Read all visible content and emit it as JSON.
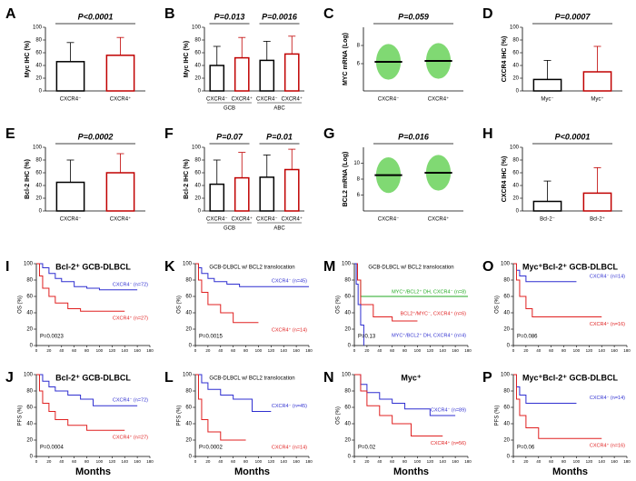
{
  "chart_data": [
    {
      "label": "A",
      "type": "bar",
      "ylabel": "Myc IHC (%)",
      "ylim": [
        0,
        100
      ],
      "yticks": [
        0,
        20,
        40,
        60,
        80,
        100
      ],
      "categories": [
        "CXCR4⁻",
        "CXCR4⁺"
      ],
      "values": [
        46,
        56
      ],
      "errors": [
        30,
        28
      ],
      "colors": [
        "#000000",
        "#c00000"
      ],
      "annotations": [
        "P<0.0001"
      ]
    },
    {
      "label": "B",
      "type": "bar",
      "ylabel": "Myc IHC (%)",
      "ylim": [
        0,
        100
      ],
      "yticks": [
        0,
        20,
        40,
        60,
        80,
        100
      ],
      "categories": [
        "CXCR4⁻",
        "CXCR4⁺",
        "CXCR4⁻",
        "CXCR4⁺"
      ],
      "groups": [
        "GCB",
        "ABC"
      ],
      "values": [
        40,
        52,
        48,
        58
      ],
      "errors": [
        30,
        32,
        30,
        28
      ],
      "colors": [
        "#000000",
        "#c00000",
        "#000000",
        "#c00000"
      ],
      "annotations": [
        "P=0.013",
        "P=0.0016"
      ]
    },
    {
      "label": "C",
      "type": "dot",
      "ylabel": "MYC mRNA (Log)",
      "ylim": [
        3,
        10
      ],
      "yticks": [
        6,
        8
      ],
      "categories": [
        "CXCR4⁻",
        "CXCR4⁺"
      ],
      "values": [
        6.2,
        6.3
      ],
      "colors": [
        "#000000",
        "#000000"
      ],
      "annotations": [
        "P=0.059"
      ]
    },
    {
      "label": "D",
      "type": "bar",
      "ylabel": "CXCR4 IHC (%)",
      "ylim": [
        0,
        100
      ],
      "yticks": [
        0,
        20,
        40,
        60,
        80,
        100
      ],
      "categories": [
        "Myc⁻",
        "Myc⁺"
      ],
      "values": [
        18,
        30
      ],
      "errors": [
        30,
        40
      ],
      "colors": [
        "#000000",
        "#c00000"
      ],
      "annotations": [
        "P=0.0007"
      ]
    },
    {
      "label": "E",
      "type": "bar",
      "ylabel": "Bcl-2 IHC (%)",
      "ylim": [
        0,
        100
      ],
      "yticks": [
        0,
        20,
        40,
        60,
        80,
        100
      ],
      "categories": [
        "CXCR4⁻",
        "CXCR4⁺"
      ],
      "values": [
        45,
        60
      ],
      "errors": [
        35,
        30
      ],
      "colors": [
        "#000000",
        "#c00000"
      ],
      "annotations": [
        "P=0.0002"
      ]
    },
    {
      "label": "F",
      "type": "bar",
      "ylabel": "Bcl-2 IHC (%)",
      "ylim": [
        0,
        100
      ],
      "yticks": [
        0,
        20,
        40,
        60,
        80,
        100
      ],
      "categories": [
        "CXCR4⁻",
        "CXCR4⁺",
        "CXCR4⁻",
        "CXCR4⁺"
      ],
      "groups": [
        "GCB",
        "ABC"
      ],
      "values": [
        42,
        52,
        53,
        65
      ],
      "errors": [
        38,
        40,
        35,
        32
      ],
      "colors": [
        "#000000",
        "#c00000",
        "#000000",
        "#c00000"
      ],
      "annotations": [
        "P=0.07",
        "P=0.01"
      ]
    },
    {
      "label": "G",
      "type": "dot",
      "ylabel": "BCL2 mRNA (Log)",
      "ylim": [
        4,
        12
      ],
      "yticks": [
        6,
        8,
        10
      ],
      "categories": [
        "CXCR4⁻",
        "CXCR4⁺"
      ],
      "values": [
        8.5,
        8.8
      ],
      "colors": [
        "#000000",
        "#000000"
      ],
      "annotations": [
        "P=0.016"
      ]
    },
    {
      "label": "H",
      "type": "bar",
      "ylabel": "CXCR4 IHC (%)",
      "ylim": [
        0,
        100
      ],
      "yticks": [
        0,
        20,
        40,
        60,
        80,
        100
      ],
      "categories": [
        "Bcl-2⁻",
        "Bcl-2⁺"
      ],
      "values": [
        15,
        28
      ],
      "errors": [
        32,
        40
      ],
      "colors": [
        "#000000",
        "#c00000"
      ],
      "annotations": [
        "P<0.0001"
      ]
    },
    {
      "label": "I",
      "type": "km",
      "title": "Bcl-2⁺ GCB-DLBCL",
      "ylabel": "OS (%)",
      "xlim": [
        0,
        180
      ],
      "xticks": [
        0,
        20,
        40,
        60,
        80,
        100,
        120,
        140,
        160,
        180
      ],
      "ylim": [
        0,
        100
      ],
      "yticks": [
        0,
        20,
        40,
        60,
        80,
        100
      ],
      "annotations": [
        "P=0.0023"
      ],
      "series": [
        {
          "name": "CXCR4⁻ (n=72)",
          "color": "#2f2fd0",
          "x": [
            0,
            10,
            20,
            30,
            40,
            60,
            80,
            100,
            160
          ],
          "y": [
            100,
            95,
            88,
            82,
            78,
            72,
            70,
            68,
            68
          ]
        },
        {
          "name": "CXCR4⁺ (n=27)",
          "color": "#e02020",
          "x": [
            0,
            5,
            10,
            20,
            30,
            50,
            70,
            140
          ],
          "y": [
            100,
            85,
            70,
            60,
            52,
            45,
            42,
            42
          ]
        }
      ]
    },
    {
      "label": "K",
      "type": "km",
      "title": "GCB-DLBCL w/ BCL2 translocation",
      "ylabel": "OS (%)",
      "xlim": [
        0,
        180
      ],
      "xticks": [
        0,
        20,
        40,
        60,
        80,
        100,
        120,
        140,
        160,
        180
      ],
      "ylim": [
        0,
        100
      ],
      "yticks": [
        0,
        20,
        40,
        60,
        80,
        100
      ],
      "annotations": [
        "P=0.0015"
      ],
      "series": [
        {
          "name": "CXCR4⁻ (n=45)",
          "color": "#2f2fd0",
          "x": [
            0,
            5,
            10,
            20,
            30,
            50,
            70,
            100,
            180
          ],
          "y": [
            100,
            95,
            88,
            82,
            78,
            75,
            72,
            72,
            72
          ]
        },
        {
          "name": "CXCR4⁺ (n=14)",
          "color": "#e02020",
          "x": [
            0,
            5,
            10,
            20,
            40,
            60,
            100
          ],
          "y": [
            100,
            80,
            65,
            50,
            40,
            28,
            28
          ]
        }
      ]
    },
    {
      "label": "M",
      "type": "km",
      "title": "GCB-DLBCL w/ BCL2 translocation",
      "ylabel": "OS (%)",
      "xlim": [
        0,
        180
      ],
      "xticks": [
        0,
        20,
        40,
        60,
        80,
        100,
        120,
        140,
        160,
        180
      ],
      "ylim": [
        0,
        100
      ],
      "yticks": [
        0,
        20,
        40,
        60,
        80,
        100
      ],
      "annotations": [
        "P=0.13"
      ],
      "series": [
        {
          "name": "MYC⁺/BCL2⁺ DH, CXCR4⁻ (n=8)",
          "color": "#22aa22",
          "x": [
            0,
            5,
            10,
            180
          ],
          "y": [
            100,
            80,
            60,
            60
          ]
        },
        {
          "name": "BCL2⁺/MYC⁻, CXCR4⁺ (n=6)",
          "color": "#e02020",
          "x": [
            0,
            5,
            10,
            30,
            60,
            100
          ],
          "y": [
            100,
            80,
            50,
            35,
            30,
            30
          ]
        },
        {
          "name": "MYC⁺/BCL2⁺ DH, CXCR4⁺ (n=4)",
          "color": "#2f2fd0",
          "x": [
            0,
            3,
            6,
            10,
            15
          ],
          "y": [
            100,
            75,
            50,
            25,
            0
          ]
        }
      ]
    },
    {
      "label": "O",
      "type": "km",
      "title": "Myc⁺Bcl-2⁺ GCB-DLBCL",
      "ylabel": "OS (%)",
      "xlim": [
        0,
        180
      ],
      "xticks": [
        0,
        20,
        40,
        60,
        80,
        100,
        120,
        140,
        160,
        180
      ],
      "ylim": [
        0,
        100
      ],
      "yticks": [
        0,
        20,
        40,
        60,
        80,
        100
      ],
      "annotations": [
        "P=0.086"
      ],
      "series": [
        {
          "name": "CXCR4⁻ (n=14)",
          "color": "#2f2fd0",
          "x": [
            0,
            5,
            10,
            20,
            100
          ],
          "y": [
            100,
            92,
            85,
            78,
            78
          ]
        },
        {
          "name": "CXCR4⁺ (n=16)",
          "color": "#e02020",
          "x": [
            0,
            5,
            10,
            20,
            30,
            140
          ],
          "y": [
            100,
            80,
            60,
            45,
            35,
            35
          ]
        }
      ]
    },
    {
      "label": "J",
      "type": "km",
      "title": "Bcl-2⁺ GCB-DLBCL",
      "ylabel": "PFS (%)",
      "xlabel": "Months",
      "xlim": [
        0,
        180
      ],
      "xticks": [
        0,
        20,
        40,
        60,
        80,
        100,
        120,
        140,
        160,
        180
      ],
      "ylim": [
        0,
        100
      ],
      "yticks": [
        0,
        20,
        40,
        60,
        80,
        100
      ],
      "annotations": [
        "P=0.0004"
      ],
      "series": [
        {
          "name": "CXCR4⁻ (n=72)",
          "color": "#2f2fd0",
          "x": [
            0,
            10,
            20,
            30,
            50,
            70,
            90,
            160
          ],
          "y": [
            100,
            92,
            85,
            80,
            75,
            70,
            62,
            62
          ]
        },
        {
          "name": "CXCR4⁺ (n=27)",
          "color": "#e02020",
          "x": [
            0,
            5,
            10,
            20,
            30,
            50,
            80,
            140
          ],
          "y": [
            100,
            80,
            65,
            55,
            45,
            38,
            32,
            32
          ]
        }
      ]
    },
    {
      "label": "L",
      "type": "km",
      "title": "GCB-DLBCL w/ BCL2 translocation",
      "ylabel": "PFS (%)",
      "xlabel": "Months",
      "xlim": [
        0,
        180
      ],
      "xticks": [
        0,
        20,
        40,
        60,
        80,
        100,
        120,
        140,
        160,
        180
      ],
      "ylim": [
        0,
        100
      ],
      "yticks": [
        0,
        20,
        40,
        60,
        80,
        100
      ],
      "annotations": [
        "P=0.0002"
      ],
      "series": [
        {
          "name": "CXCR4⁻ (n=45)",
          "color": "#2f2fd0",
          "x": [
            0,
            10,
            20,
            40,
            60,
            90,
            120
          ],
          "y": [
            100,
            90,
            82,
            75,
            70,
            55,
            55
          ]
        },
        {
          "name": "CXCR4⁺ (n=14)",
          "color": "#e02020",
          "x": [
            0,
            5,
            10,
            20,
            40,
            80
          ],
          "y": [
            100,
            70,
            45,
            30,
            20,
            20
          ]
        }
      ]
    },
    {
      "label": "N",
      "type": "km",
      "title": "Myc⁺",
      "ylabel": "OS (%)",
      "xlabel": "Months",
      "xlim": [
        0,
        180
      ],
      "xticks": [
        0,
        20,
        40,
        60,
        80,
        100,
        120,
        140,
        160,
        180
      ],
      "ylim": [
        0,
        100
      ],
      "yticks": [
        0,
        20,
        40,
        60,
        80,
        100
      ],
      "annotations": [
        "P=0.02"
      ],
      "series": [
        {
          "name": "CXCR4⁻ (n=89)",
          "color": "#2f2fd0",
          "x": [
            0,
            10,
            20,
            40,
            60,
            80,
            120,
            160
          ],
          "y": [
            100,
            88,
            78,
            70,
            65,
            58,
            50,
            50
          ]
        },
        {
          "name": "CXCR4⁺ (n=56)",
          "color": "#e02020",
          "x": [
            0,
            10,
            20,
            40,
            60,
            90,
            140
          ],
          "y": [
            100,
            80,
            62,
            50,
            40,
            25,
            25
          ]
        }
      ]
    },
    {
      "label": "P",
      "type": "km",
      "title": "Myc⁺Bcl-2⁺ GCB-DLBCL",
      "ylabel": "PFS (%)",
      "xlabel": "Months",
      "xlim": [
        0,
        180
      ],
      "xticks": [
        0,
        20,
        40,
        60,
        80,
        100,
        120,
        140,
        160,
        180
      ],
      "ylim": [
        0,
        100
      ],
      "yticks": [
        0,
        20,
        40,
        60,
        80,
        100
      ],
      "annotations": [
        "P=0.06"
      ],
      "series": [
        {
          "name": "CXCR4⁻ (n=14)",
          "color": "#2f2fd0",
          "x": [
            0,
            5,
            10,
            20,
            100
          ],
          "y": [
            100,
            85,
            75,
            65,
            65
          ]
        },
        {
          "name": "CXCR4⁺ (n=16)",
          "color": "#e02020",
          "x": [
            0,
            5,
            10,
            20,
            40,
            140
          ],
          "y": [
            100,
            70,
            50,
            35,
            22,
            22
          ]
        }
      ]
    }
  ]
}
